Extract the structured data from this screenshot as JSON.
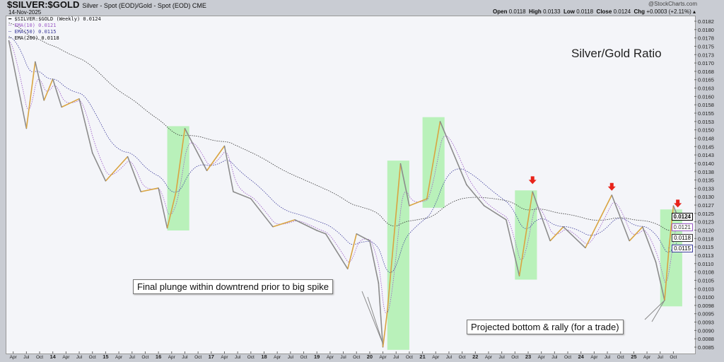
{
  "header": {
    "symbol": "$SILVER:$GOLD",
    "description": "Silver - Spot (EOD)/Gold - Spot (EOD)",
    "exchange": "CME",
    "date": "14-Nov-2025",
    "brand": "@StockCharts.com",
    "open_label": "Open",
    "open": "0.0118",
    "high_label": "High",
    "high": "0.0133",
    "low_label": "Low",
    "low": "0.0118",
    "close_label": "Close",
    "close": "0.0124",
    "chg_label": "Chg",
    "chg": "+0.0003 (+2.11%)"
  },
  "legend": {
    "main": "$SILVER:$GOLD (Weekly) 0.0124",
    "ema10": "EMA(10) 0.0121",
    "ema50": "EMA(50) 0.0115",
    "ema200": "EMA(200) 0.0118"
  },
  "price_boxes": {
    "close": "0.0124",
    "ema10": "0.0121",
    "ema200": "0.0118",
    "ema50": "0.0115"
  },
  "colors": {
    "up": "#d9a441",
    "down": "#8c8c8c",
    "ema10": "#9b59c6",
    "ema50": "#3a3a9a",
    "ema200": "#333333",
    "highlight": "#9ff09f",
    "arrow": "#e8231a"
  },
  "chart_data": {
    "type": "line",
    "title": "Silver/Gold Ratio",
    "ylim": [
      0.0085,
      0.01825
    ],
    "yticks": [
      "0.0182",
      "0.0180",
      "0.0178",
      "0.0175",
      "0.0173",
      "0.0170",
      "0.0168",
      "0.0165",
      "0.0163",
      "0.0160",
      "0.0158",
      "0.0155",
      "0.0153",
      "0.0150",
      "0.0148",
      "0.0145",
      "0.0143",
      "0.0140",
      "0.0138",
      "0.0135",
      "0.0133",
      "0.0130",
      "0.0127",
      "0.0125",
      "0.0123",
      "0.0120",
      "0.0118",
      "0.0115",
      "0.0113",
      "0.0110",
      "0.0108",
      "0.0105",
      "0.0103",
      "0.0100",
      "0.0098",
      "0.0095",
      "0.0093",
      "0.0090",
      "0.0088",
      "0.0085"
    ],
    "xticks": [
      "Apr",
      "Jul",
      "Oct",
      "14",
      "Apr",
      "Jul",
      "Oct",
      "15",
      "Apr",
      "Jul",
      "Oct",
      "16",
      "Apr",
      "Jul",
      "Oct",
      "17",
      "Apr",
      "Jul",
      "Oct",
      "18",
      "Apr",
      "Jul",
      "Oct",
      "19",
      "Apr",
      "Jul",
      "Oct",
      "20",
      "Apr",
      "Jul",
      "Oct",
      "21",
      "Apr",
      "Jul",
      "Oct",
      "22",
      "Apr",
      "Jul",
      "Oct",
      "23",
      "Apr",
      "Jul",
      "Oct",
      "24",
      "Apr",
      "Jul",
      "Oct",
      "25",
      "Apr",
      "Jul",
      "Oct"
    ],
    "series": [
      {
        "name": "$SILVER:$GOLD (Weekly)",
        "points": [
          [
            "2013-03",
            0.01767
          ],
          [
            "2013-07",
            0.01504
          ],
          [
            "2013-09",
            0.01704
          ],
          [
            "2013-11",
            0.01588
          ],
          [
            "2014-01",
            0.01652
          ],
          [
            "2014-03",
            0.01568
          ],
          [
            "2014-07",
            0.01593
          ],
          [
            "2014-10",
            0.01431
          ],
          [
            "2015-01",
            0.01347
          ],
          [
            "2015-06",
            0.0142
          ],
          [
            "2015-09",
            0.01315
          ],
          [
            "2016-01",
            0.01326
          ],
          [
            "2016-03",
            0.01206
          ],
          [
            "2016-05",
            0.01315
          ],
          [
            "2016-07",
            0.01504
          ],
          [
            "2016-12",
            0.01378
          ],
          [
            "2017-04",
            0.01452
          ],
          [
            "2017-06",
            0.01315
          ],
          [
            "2017-10",
            0.01294
          ],
          [
            "2018-03",
            0.0121
          ],
          [
            "2018-08",
            0.01231
          ],
          [
            "2019-01",
            0.01199
          ],
          [
            "2019-03",
            0.01189
          ],
          [
            "2019-08",
            0.01084
          ],
          [
            "2019-10",
            0.01189
          ],
          [
            "2020-01",
            0.01168
          ],
          [
            "2020-03",
            0.01042
          ],
          [
            "2020-04",
            0.0085
          ],
          [
            "2020-05",
            0.00957
          ],
          [
            "2020-08",
            0.01399
          ],
          [
            "2020-10",
            0.01273
          ],
          [
            "2021-02",
            0.01294
          ],
          [
            "2021-05",
            0.01525
          ],
          [
            "2021-07",
            0.01462
          ],
          [
            "2021-11",
            0.01336
          ],
          [
            "2022-03",
            0.01273
          ],
          [
            "2022-08",
            0.01231
          ],
          [
            "2022-11",
            0.01063
          ],
          [
            "2023-02",
            0.01315
          ],
          [
            "2023-06",
            0.01168
          ],
          [
            "2023-09",
            0.0121
          ],
          [
            "2024-02",
            0.01147
          ],
          [
            "2024-08",
            0.01305
          ],
          [
            "2024-12",
            0.01168
          ],
          [
            "2025-03",
            0.0121
          ],
          [
            "2025-06",
            0.01105
          ],
          [
            "2025-08",
            0.0099
          ],
          [
            "2025-09",
            0.01147
          ],
          [
            "2025-10",
            0.01273
          ],
          [
            "2025-11",
            0.0124
          ]
        ]
      }
    ],
    "highlights": [
      {
        "from": "2016-03",
        "to": "2016-08",
        "low": 0.01199,
        "high": 0.01511
      },
      {
        "from": "2020-05",
        "to": "2020-10",
        "low": 0.00842,
        "high": 0.01408
      },
      {
        "from": "2021-01",
        "to": "2021-06",
        "low": 0.01267,
        "high": 0.01538
      },
      {
        "from": "2022-10",
        "to": "2023-03",
        "low": 0.01052,
        "high": 0.01319
      },
      {
        "from": "2025-07",
        "to": "2025-12",
        "low": 0.00972,
        "high": 0.01262
      }
    ],
    "arrows": [
      {
        "date": "2023-02",
        "value": 0.0134
      },
      {
        "date": "2024-08",
        "value": 0.0132
      },
      {
        "date": "2025-11",
        "value": 0.0127
      }
    ],
    "annotations": [
      {
        "text": "Final plunge within downtrend prior to big spike",
        "date": "2020-04",
        "value": 0.0086
      },
      {
        "text": "Projected bottom & rally (for a trade)",
        "date": "2025-08",
        "value": 0.0099
      }
    ]
  }
}
